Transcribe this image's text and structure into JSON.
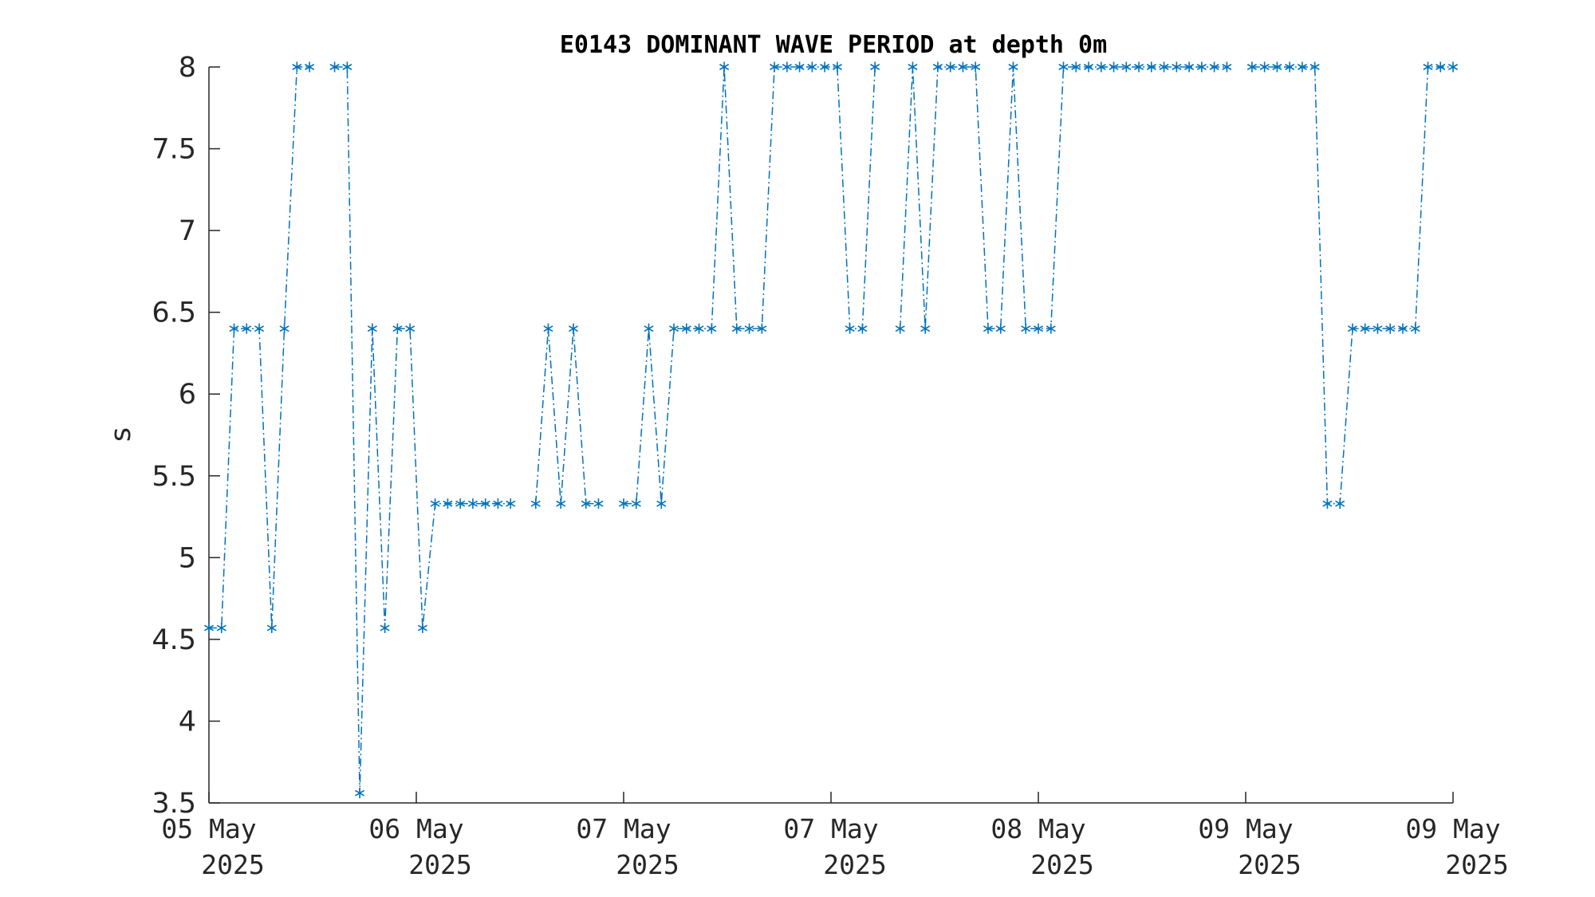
{
  "chart_data": {
    "type": "line",
    "title": "E0143 DOMINANT WAVE PERIOD at depth 0m",
    "xlabel": "",
    "ylabel": "s",
    "ylim": [
      3.5,
      8
    ],
    "yticks": [
      3.5,
      4,
      4.5,
      5,
      5.5,
      6,
      6.5,
      7,
      7.5,
      8
    ],
    "ytick_labels": [
      "3.5",
      "4",
      "4.5",
      "5",
      "5.5",
      "6",
      "6.5",
      "7",
      "7.5",
      "8"
    ],
    "xtick_labels": [
      {
        "day": "05 May",
        "year": "2025"
      },
      {
        "day": "06 May",
        "year": "2025"
      },
      {
        "day": "07 May",
        "year": "2025"
      },
      {
        "day": "07 May",
        "year": "2025"
      },
      {
        "day": "08 May",
        "year": "2025"
      },
      {
        "day": "09 May",
        "year": "2025"
      },
      {
        "day": "09 May",
        "year": "2025"
      }
    ],
    "line_style": "dash-dot",
    "marker": "asterisk",
    "color": "#0072BD",
    "grid": false,
    "series": [
      {
        "values": [
          4.57,
          4.57,
          6.4,
          6.4,
          6.4,
          4.57,
          6.4,
          8,
          8,
          null,
          8,
          8,
          3.56,
          6.4,
          4.57,
          6.4,
          6.4,
          4.57,
          5.33,
          5.33,
          5.33,
          5.33,
          5.33,
          5.33,
          5.33,
          null,
          5.33,
          6.4,
          5.33,
          6.4,
          5.33,
          5.33,
          null,
          5.33,
          5.33,
          6.4,
          5.33,
          6.4,
          6.4,
          6.4,
          6.4,
          8,
          6.4,
          6.4,
          6.4,
          8,
          8,
          8,
          8,
          8,
          8,
          6.4,
          6.4,
          8,
          null,
          6.4,
          8,
          6.4,
          8,
          8,
          8,
          8,
          6.4,
          6.4,
          8,
          6.4,
          6.4,
          6.4,
          8,
          8,
          8,
          8,
          8,
          8,
          8,
          8,
          8,
          8,
          8,
          8,
          8,
          8,
          null,
          8,
          8,
          8,
          8,
          8,
          8,
          5.33,
          5.33,
          6.4,
          6.4,
          6.4,
          6.4,
          6.4,
          6.4,
          8,
          8,
          8
        ]
      }
    ]
  }
}
